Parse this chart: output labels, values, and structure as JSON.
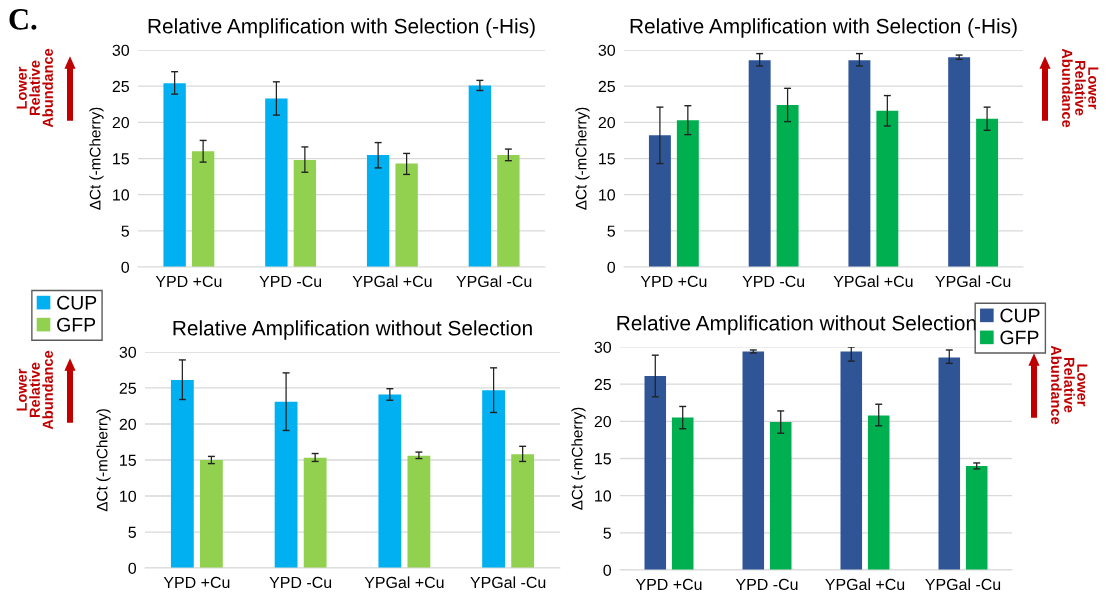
{
  "chart_data": [
    {
      "type": "bar",
      "title": "Relative Amplification with Selection (-His)",
      "ylabel": "ΔCt (-mCherry)",
      "categories": [
        "YPD +Cu",
        "YPD -Cu",
        "YPGal +Cu",
        "YPGal -Cu"
      ],
      "ylim": [
        0,
        30
      ],
      "yticks": [
        0,
        5,
        10,
        15,
        20,
        25,
        30
      ],
      "grid": "y",
      "annotations": [
        "C.",
        "Lower Relative Abundance"
      ],
      "series": [
        {
          "color": "#00b0f0",
          "values": [
            25.4,
            23.3,
            15.5,
            25.1
          ],
          "errors": [
            [
              23.9,
              27.0
            ],
            [
              21.0,
              25.6
            ],
            [
              13.7,
              17.2
            ],
            [
              24.4,
              25.8
            ]
          ]
        },
        {
          "color": "#92d050",
          "values": [
            16.0,
            14.8,
            14.3,
            15.5
          ],
          "errors": [
            [
              14.5,
              17.5
            ],
            [
              13.1,
              16.6
            ],
            [
              12.8,
              15.7
            ],
            [
              14.7,
              16.3
            ]
          ]
        }
      ]
    },
    {
      "type": "bar",
      "title": "Relative Amplification with Selection (-His)",
      "ylabel": "ΔCt (-mCherry)",
      "categories": [
        "YPD +Cu",
        "YPD -Cu",
        "YPGal +Cu",
        "YPGal -Cu"
      ],
      "ylim": [
        0,
        30
      ],
      "yticks": [
        0,
        5,
        10,
        15,
        20,
        25,
        30
      ],
      "grid": "y",
      "annotations": [
        "Lower Relative Abundance"
      ],
      "series": [
        {
          "color": "#2f5597",
          "values": [
            18.2,
            28.6,
            28.6,
            29.0
          ],
          "errors": [
            [
              14.3,
              22.1
            ],
            [
              27.8,
              29.5
            ],
            [
              27.8,
              29.5
            ],
            [
              28.7,
              29.3
            ]
          ]
        },
        {
          "color": "#00b050",
          "values": [
            20.3,
            22.4,
            21.6,
            20.5
          ],
          "errors": [
            [
              18.3,
              22.3
            ],
            [
              20.1,
              24.7
            ],
            [
              19.5,
              23.7
            ],
            [
              18.9,
              22.1
            ]
          ]
        }
      ]
    },
    {
      "type": "bar",
      "title": "Relative Amplification without Selection",
      "ylabel": "ΔCt (-mCherry)",
      "categories": [
        "YPD +Cu",
        "YPD -Cu",
        "YPGal +Cu",
        "YPGal -Cu"
      ],
      "ylim": [
        0,
        30
      ],
      "yticks": [
        0,
        5,
        10,
        15,
        20,
        25,
        30
      ],
      "grid": "y",
      "legend": "top left",
      "annotations": [
        "Lower Relative Abundance"
      ],
      "series": [
        {
          "name": "CUP",
          "color": "#00b0f0",
          "values": [
            26.1,
            23.1,
            24.1,
            24.7
          ],
          "errors": [
            [
              23.4,
              28.9
            ],
            [
              19.1,
              27.1
            ],
            [
              23.3,
              24.9
            ],
            [
              21.6,
              27.8
            ]
          ]
        },
        {
          "name": "GFP",
          "color": "#92d050",
          "values": [
            15.0,
            15.3,
            15.6,
            15.8
          ],
          "errors": [
            [
              14.5,
              15.5
            ],
            [
              14.8,
              15.9
            ],
            [
              15.2,
              16.1
            ],
            [
              14.8,
              16.9
            ]
          ]
        }
      ]
    },
    {
      "type": "bar",
      "title": "Relative Amplification without Selection",
      "ylabel": "ΔCt (-mCherry)",
      "categories": [
        "YPD +Cu",
        "YPD -Cu",
        "YPGal +Cu",
        "YPGal -Cu"
      ],
      "ylim": [
        0,
        30
      ],
      "yticks": [
        0,
        5,
        10,
        15,
        20,
        25,
        30
      ],
      "grid": "y",
      "legend": "top right",
      "annotations": [
        "Lower Relative Abundance"
      ],
      "series": [
        {
          "name": "CUP",
          "color": "#2f5597",
          "values": [
            26.1,
            29.4,
            29.4,
            28.6
          ],
          "errors": [
            [
              23.3,
              28.9
            ],
            [
              29.2,
              29.6
            ],
            [
              28.1,
              30.0
            ],
            [
              27.8,
              29.6
            ]
          ]
        },
        {
          "name": "GFP",
          "color": "#00b050",
          "values": [
            20.5,
            19.9,
            20.8,
            14.0
          ],
          "errors": [
            [
              19.0,
              22.0
            ],
            [
              18.4,
              21.4
            ],
            [
              19.4,
              22.3
            ],
            [
              13.6,
              14.4
            ]
          ]
        }
      ]
    }
  ]
}
